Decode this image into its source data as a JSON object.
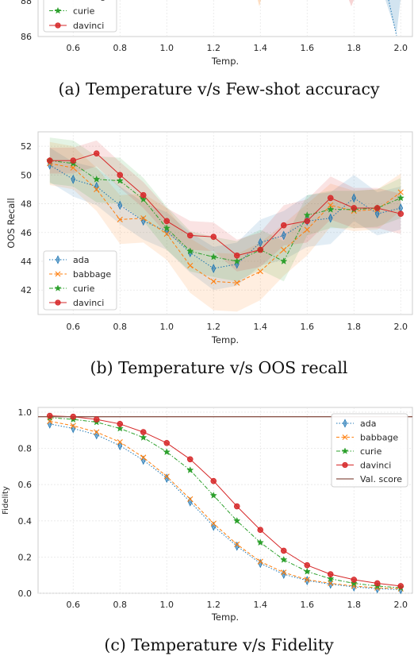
{
  "colors": {
    "ada": "#1f77b4",
    "babbage": "#ff7f0e",
    "curie": "#2ca02c",
    "davinci": "#d62728",
    "val": "#8c564b"
  },
  "captions": {
    "a": "(a) Temperature v/s Few-shot accuracy",
    "b": "(b) Temperature v/s OOS recall",
    "c": "(c) Temperature v/s Fidelity"
  },
  "chart_data": [
    {
      "type": "line",
      "caption": "(a) Temperature v/s Few-shot accuracy",
      "xlabel": "Temp.",
      "ylabel": "",
      "xlim": [
        0.45,
        2.05
      ],
      "ylim": [
        86,
        89
      ],
      "x_ticks": [
        "0.6",
        "0.8",
        "1.0",
        "1.2",
        "1.4",
        "1.6",
        "1.8",
        "2.0"
      ],
      "y_ticks": [
        "86",
        "88"
      ],
      "legend": [
        "babbage",
        "curie",
        "davinci"
      ],
      "legend_position": "lower-left",
      "note": "only the bottom portion of this panel is visible"
    },
    {
      "type": "line",
      "caption": "(b) Temperature v/s OOS recall",
      "xlabel": "Temp.",
      "ylabel": "OOS Recall",
      "xlim": [
        0.45,
        2.05
      ],
      "ylim": [
        40.3,
        53
      ],
      "x_ticks": [
        "0.6",
        "0.8",
        "1.0",
        "1.2",
        "1.4",
        "1.6",
        "1.8",
        "2.0"
      ],
      "y_ticks": [
        "42",
        "44",
        "46",
        "48",
        "50",
        "52"
      ],
      "legend_position": "lower-left",
      "grid": true,
      "x": [
        0.5,
        0.6,
        0.7,
        0.8,
        0.9,
        1.0,
        1.1,
        1.2,
        1.3,
        1.4,
        1.5,
        1.6,
        1.7,
        1.8,
        1.9,
        2.0
      ],
      "series": [
        {
          "name": "ada",
          "marker": "thin_diamond",
          "linestyle": "dotted",
          "values": [
            50.7,
            49.7,
            49.2,
            47.9,
            46.8,
            46.1,
            44.6,
            43.5,
            43.8,
            45.3,
            45.8,
            46.8,
            47.0,
            48.4,
            47.3,
            47.7
          ],
          "band": [
            1.2,
            1.2,
            1.3,
            1.3,
            1.3,
            1.3,
            1.4,
            1.5,
            1.5,
            1.6,
            1.7,
            1.8,
            1.8,
            1.6,
            1.5,
            1.5
          ]
        },
        {
          "name": "babbage",
          "marker": "x",
          "linestyle": "dashed",
          "values": [
            50.8,
            50.5,
            49.0,
            46.9,
            47.0,
            45.9,
            43.7,
            42.6,
            42.5,
            43.3,
            44.8,
            46.2,
            47.9,
            47.5,
            47.6,
            48.8
          ],
          "band": [
            1.5,
            1.5,
            1.5,
            1.7,
            1.7,
            1.8,
            1.9,
            2.0,
            2.0,
            2.0,
            1.8,
            1.8,
            1.5,
            1.4,
            1.4,
            1.3
          ]
        },
        {
          "name": "curie",
          "marker": "*",
          "linestyle": "dashdot",
          "values": [
            51.0,
            50.8,
            49.7,
            49.6,
            48.3,
            46.3,
            44.7,
            44.3,
            44.0,
            44.8,
            44.0,
            47.2,
            47.6,
            47.6,
            47.7,
            48.4
          ],
          "band": [
            1.6,
            1.6,
            1.6,
            1.6,
            1.5,
            1.5,
            1.4,
            1.4,
            1.4,
            1.4,
            1.4,
            1.4,
            1.3,
            1.3,
            1.3,
            1.4
          ]
        },
        {
          "name": "davinci",
          "marker": "o",
          "linestyle": "solid",
          "values": [
            51.0,
            51.0,
            51.5,
            50.0,
            48.6,
            46.8,
            45.8,
            45.7,
            44.4,
            44.8,
            46.5,
            46.8,
            48.4,
            47.7,
            47.7,
            47.3
          ],
          "band": [
            0.9,
            0.9,
            0.9,
            0.9,
            0.9,
            0.9,
            1.0,
            1.0,
            1.1,
            1.2,
            1.4,
            1.5,
            1.5,
            1.4,
            1.4,
            1.4
          ]
        }
      ]
    },
    {
      "type": "line",
      "caption": "(c) Temperature v/s Fidelity",
      "xlabel": "Temp.",
      "ylabel": "Fidelity",
      "xlim": [
        0.45,
        2.05
      ],
      "ylim": [
        0,
        1
      ],
      "x_ticks": [
        "0.6",
        "0.8",
        "1.0",
        "1.2",
        "1.4",
        "1.6",
        "1.8",
        "2.0"
      ],
      "y_ticks": [
        "0.0",
        "0.2",
        "0.4",
        "0.6",
        "0.8",
        "1.0"
      ],
      "legend_position": "upper-right",
      "grid": true,
      "x": [
        0.5,
        0.6,
        0.7,
        0.8,
        0.9,
        1.0,
        1.1,
        1.2,
        1.3,
        1.4,
        1.5,
        1.6,
        1.7,
        1.8,
        1.9,
        2.0
      ],
      "series": [
        {
          "name": "ada",
          "marker": "thin_diamond",
          "linestyle": "dotted",
          "values": [
            0.935,
            0.91,
            0.875,
            0.815,
            0.735,
            0.635,
            0.505,
            0.37,
            0.26,
            0.165,
            0.105,
            0.07,
            0.05,
            0.035,
            0.025,
            0.02
          ]
        },
        {
          "name": "babbage",
          "marker": "x",
          "linestyle": "dashed",
          "values": [
            0.95,
            0.925,
            0.89,
            0.835,
            0.75,
            0.645,
            0.52,
            0.385,
            0.27,
            0.175,
            0.115,
            0.075,
            0.055,
            0.04,
            0.03,
            0.025
          ]
        },
        {
          "name": "curie",
          "marker": "*",
          "linestyle": "dashdot",
          "values": [
            0.97,
            0.96,
            0.945,
            0.91,
            0.86,
            0.78,
            0.68,
            0.54,
            0.4,
            0.28,
            0.185,
            0.12,
            0.08,
            0.055,
            0.04,
            0.03
          ]
        },
        {
          "name": "davinci",
          "marker": "o",
          "linestyle": "solid",
          "values": [
            0.98,
            0.975,
            0.96,
            0.935,
            0.89,
            0.83,
            0.74,
            0.62,
            0.48,
            0.35,
            0.235,
            0.155,
            0.105,
            0.075,
            0.055,
            0.04
          ]
        },
        {
          "name": "Val. score",
          "marker": "none",
          "linestyle": "solid",
          "hline": 0.975
        }
      ]
    }
  ]
}
